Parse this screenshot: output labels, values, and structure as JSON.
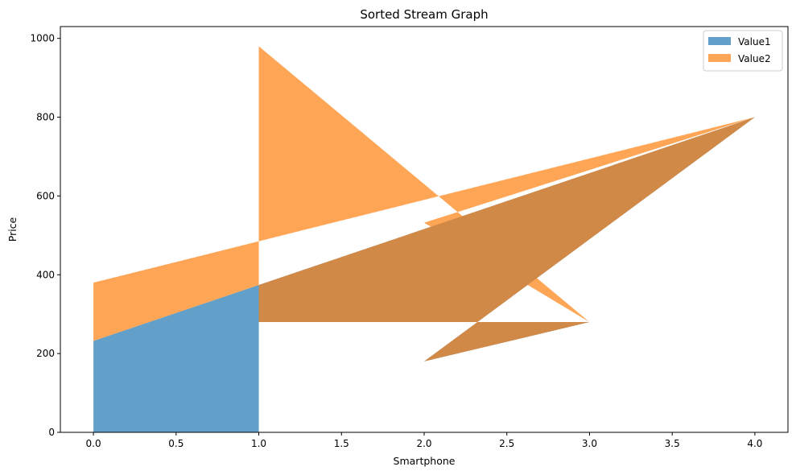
{
  "chart_data": {
    "type": "area",
    "title": "Sorted Stream Graph",
    "xlabel": "Smartphone",
    "ylabel": "Price",
    "xlim": [
      -0.2,
      4.2
    ],
    "ylim": [
      0,
      1030
    ],
    "xticks": [
      "0.0",
      "0.5",
      "1.0",
      "1.5",
      "2.0",
      "2.5",
      "3.0",
      "3.5",
      "4.0"
    ],
    "yticks": [
      "0",
      "200",
      "400",
      "600",
      "800",
      "1000"
    ],
    "legend_position": "top-right",
    "grid": false,
    "series": [
      {
        "name": "Value1",
        "color": "#1f77b4",
        "alpha": 0.7,
        "x": [
          1,
          3,
          2,
          4,
          0
        ],
        "lower": [
          0,
          0,
          0,
          0,
          0
        ],
        "upper": [
          280,
          280,
          180,
          800,
          232
        ]
      },
      {
        "name": "Value2",
        "color": "#ff7f0e",
        "alpha": 0.7,
        "x": [
          1,
          3,
          2,
          4,
          0
        ],
        "lower": [
          280,
          280,
          180,
          800,
          232
        ],
        "upper": [
          980,
          280,
          532,
          800,
          380
        ]
      }
    ]
  }
}
